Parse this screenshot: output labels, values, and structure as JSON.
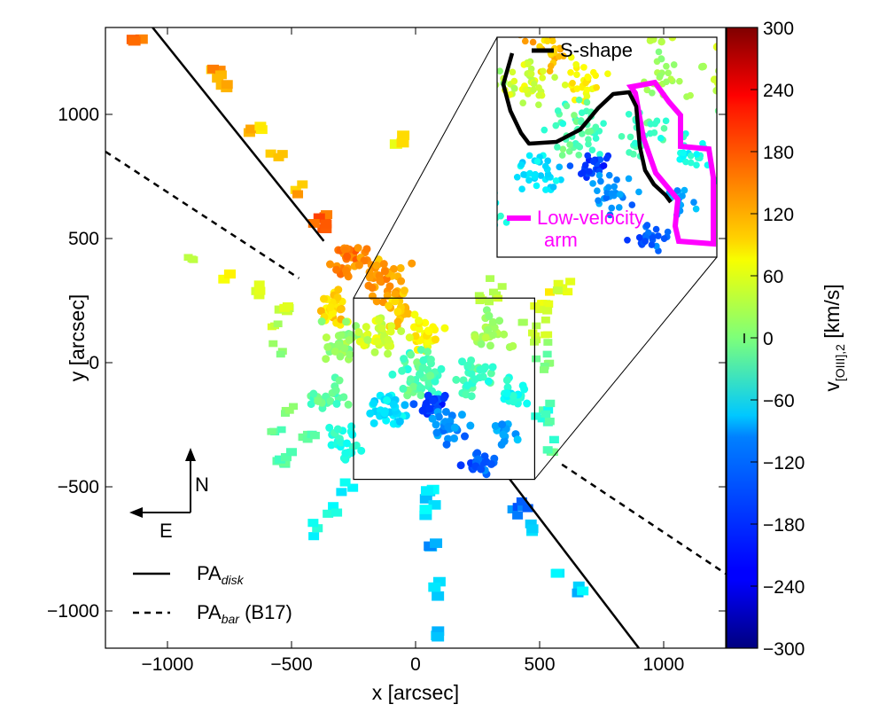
{
  "chart_data": {
    "type": "scatter",
    "xlabel": "x [arcsec]",
    "ylabel": "y [arcsec]",
    "xlim": [
      -1250,
      1250
    ],
    "ylim": [
      -1150,
      1350
    ],
    "xticks": [
      -1000,
      -500,
      0,
      500,
      1000
    ],
    "xtick_labels": [
      "−1000",
      "−500",
      "0",
      "500",
      "1000"
    ],
    "yticks": [
      -1000,
      -500,
      0,
      500,
      1000
    ],
    "ytick_labels": [
      "−1000",
      "−500",
      "0",
      "500",
      "1000"
    ],
    "colorbar": {
      "label_main": "v",
      "label_sub": "[OIII],2",
      "label_unit": " [km/s]",
      "range": [
        -300,
        300
      ],
      "ticks": [
        300,
        240,
        180,
        120,
        60,
        0,
        -60,
        -120,
        -180,
        -240,
        -300
      ],
      "tick_labels": [
        "300",
        "240",
        "180",
        "120",
        "60",
        "0",
        "−60",
        "−120",
        "−180",
        "−240",
        "−300"
      ],
      "colormap": "jet",
      "errorbar_symbol": "I"
    },
    "lines": [
      {
        "name": "PA_disk",
        "style": "solid",
        "color": "#000000",
        "segments": [
          [
            [
              -1060,
              1350
            ],
            [
              -370,
              490
            ]
          ],
          [
            [
              380,
              -470
            ],
            [
              900,
              -1150
            ]
          ]
        ]
      },
      {
        "name": "PA_bar (B17)",
        "style": "dashed",
        "color": "#000000",
        "segments": [
          [
            [
              -1250,
              850
            ],
            [
              -470,
              340
            ]
          ],
          [
            [
              590,
              -410
            ],
            [
              1250,
              -850
            ]
          ]
        ]
      }
    ],
    "legend": {
      "position": "lower-left",
      "entries": [
        {
          "base": "PA",
          "sub": "disk",
          "suffix": "",
          "style": "solid"
        },
        {
          "base": "PA",
          "sub": "bar",
          "suffix": " (B17)",
          "style": "dashed"
        }
      ]
    },
    "compass": {
      "north": "N",
      "east": "E"
    },
    "zoom_box": {
      "x": [
        -250,
        480
      ],
      "y": [
        -470,
        260
      ]
    },
    "inset": {
      "legend_s_shape": "S-shape",
      "legend_low_velocity_line1": "Low-velocity",
      "legend_low_velocity_line2": "arm",
      "s_shape_color": "#000000",
      "low_velocity_color": "#ff00ff"
    },
    "clusters": [
      {
        "x": -1120,
        "y": 1300,
        "v": 155,
        "n": 3,
        "s": 25,
        "size": 14,
        "shape": "rect"
      },
      {
        "x": -830,
        "y": 1190,
        "v": 130,
        "n": 4,
        "s": 35,
        "size": 13,
        "shape": "rect"
      },
      {
        "x": -770,
        "y": 1110,
        "v": 125,
        "n": 4,
        "s": 35,
        "size": 13,
        "shape": "rect"
      },
      {
        "x": -640,
        "y": 940,
        "v": 110,
        "n": 4,
        "s": 30,
        "size": 13,
        "shape": "rect"
      },
      {
        "x": -560,
        "y": 820,
        "v": 100,
        "n": 3,
        "s": 25,
        "size": 12,
        "shape": "rect"
      },
      {
        "x": -470,
        "y": 690,
        "v": 115,
        "n": 3,
        "s": 25,
        "size": 12,
        "shape": "rect"
      },
      {
        "x": -380,
        "y": 570,
        "v": 170,
        "n": 8,
        "s": 40,
        "size": 13,
        "shape": "rect"
      },
      {
        "x": -70,
        "y": 910,
        "v": 95,
        "n": 3,
        "s": 25,
        "size": 14,
        "shape": "rect"
      },
      {
        "x": -900,
        "y": 420,
        "v": 40,
        "n": 3,
        "s": 25,
        "size": 10,
        "shape": "rect"
      },
      {
        "x": -760,
        "y": 360,
        "v": 75,
        "n": 3,
        "s": 25,
        "size": 13,
        "shape": "rect"
      },
      {
        "x": -640,
        "y": 300,
        "v": 50,
        "n": 4,
        "s": 30,
        "size": 12,
        "shape": "rect"
      },
      {
        "x": -520,
        "y": 230,
        "v": 40,
        "n": 5,
        "s": 35,
        "size": 12,
        "shape": "rect"
      },
      {
        "x": -550,
        "y": 60,
        "v": 10,
        "n": 3,
        "s": 25,
        "size": 10,
        "shape": "rect"
      },
      {
        "x": -580,
        "y": -280,
        "v": -10,
        "n": 4,
        "s": 30,
        "size": 10,
        "shape": "rect"
      },
      {
        "x": -530,
        "y": -390,
        "v": -30,
        "n": 6,
        "s": 40,
        "size": 12,
        "shape": "rect"
      },
      {
        "x": -500,
        "y": -180,
        "v": 5,
        "n": 4,
        "s": 30,
        "size": 10,
        "shape": "rect"
      },
      {
        "x": -430,
        "y": -300,
        "v": -20,
        "n": 5,
        "s": 35,
        "size": 11,
        "shape": "rect"
      },
      {
        "x": -270,
        "y": 420,
        "v": 150,
        "n": 35,
        "s": 65,
        "size": 9,
        "shape": "circle"
      },
      {
        "x": -130,
        "y": 340,
        "v": 130,
        "n": 40,
        "s": 75,
        "size": 9,
        "shape": "circle"
      },
      {
        "x": -330,
        "y": 230,
        "v": 90,
        "n": 30,
        "s": 60,
        "size": 9,
        "shape": "circle"
      },
      {
        "x": -310,
        "y": 80,
        "v": 15,
        "n": 35,
        "s": 70,
        "size": 9,
        "shape": "circle"
      },
      {
        "x": -350,
        "y": -120,
        "v": -25,
        "n": 25,
        "s": 70,
        "size": 9,
        "shape": "circle"
      },
      {
        "x": -280,
        "y": -330,
        "v": -55,
        "n": 25,
        "s": 70,
        "size": 9,
        "shape": "circle"
      },
      {
        "x": -70,
        "y": 230,
        "v": 110,
        "n": 20,
        "s": 60,
        "size": 9,
        "shape": "circle"
      },
      {
        "x": -150,
        "y": 100,
        "v": 50,
        "n": 40,
        "s": 70,
        "size": 9,
        "shape": "circle"
      },
      {
        "x": 40,
        "y": 120,
        "v": 80,
        "n": 30,
        "s": 60,
        "size": 9,
        "shape": "circle"
      },
      {
        "x": 20,
        "y": -40,
        "v": -30,
        "n": 50,
        "s": 75,
        "size": 9,
        "shape": "circle"
      },
      {
        "x": 60,
        "y": -170,
        "v": -190,
        "n": 25,
        "s": 45,
        "size": 9,
        "shape": "circle"
      },
      {
        "x": 130,
        "y": -250,
        "v": -140,
        "n": 30,
        "s": 60,
        "size": 9,
        "shape": "circle"
      },
      {
        "x": -100,
        "y": -190,
        "v": -90,
        "n": 35,
        "s": 70,
        "size": 9,
        "shape": "circle"
      },
      {
        "x": 230,
        "y": -60,
        "v": -40,
        "n": 30,
        "s": 70,
        "size": 9,
        "shape": "circle"
      },
      {
        "x": 300,
        "y": 120,
        "v": 20,
        "n": 25,
        "s": 70,
        "size": 9,
        "shape": "circle"
      },
      {
        "x": 250,
        "y": -400,
        "v": -170,
        "n": 25,
        "s": 50,
        "size": 9,
        "shape": "circle"
      },
      {
        "x": 350,
        "y": -280,
        "v": -130,
        "n": 15,
        "s": 50,
        "size": 9,
        "shape": "circle"
      },
      {
        "x": 400,
        "y": -130,
        "v": -60,
        "n": 20,
        "s": 50,
        "size": 9,
        "shape": "circle"
      },
      {
        "x": 480,
        "y": 120,
        "v": 40,
        "n": 12,
        "s": 45,
        "size": 10,
        "shape": "rect"
      },
      {
        "x": 530,
        "y": 240,
        "v": 60,
        "n": 8,
        "s": 40,
        "size": 11,
        "shape": "rect"
      },
      {
        "x": 600,
        "y": 300,
        "v": 50,
        "n": 6,
        "s": 35,
        "size": 11,
        "shape": "rect"
      },
      {
        "x": 300,
        "y": 290,
        "v": 30,
        "n": 10,
        "s": 45,
        "size": 10,
        "shape": "rect"
      },
      {
        "x": 520,
        "y": -210,
        "v": -40,
        "n": 8,
        "s": 40,
        "size": 11,
        "shape": "rect"
      },
      {
        "x": 560,
        "y": -350,
        "v": -30,
        "n": 4,
        "s": 30,
        "size": 11,
        "shape": "rect"
      },
      {
        "x": 420,
        "y": -600,
        "v": -150,
        "n": 3,
        "s": 25,
        "size": 12,
        "shape": "rect"
      },
      {
        "x": 480,
        "y": -680,
        "v": -110,
        "n": 3,
        "s": 25,
        "size": 13,
        "shape": "rect"
      },
      {
        "x": 560,
        "y": -830,
        "v": -100,
        "n": 3,
        "s": 25,
        "size": 13,
        "shape": "rect"
      },
      {
        "x": 660,
        "y": -930,
        "v": -100,
        "n": 3,
        "s": 25,
        "size": 13,
        "shape": "rect"
      },
      {
        "x": 430,
        "y": -560,
        "v": -160,
        "n": 3,
        "s": 25,
        "size": 12,
        "shape": "rect"
      },
      {
        "x": -280,
        "y": -500,
        "v": -80,
        "n": 3,
        "s": 25,
        "size": 12,
        "shape": "rect"
      },
      {
        "x": -330,
        "y": -600,
        "v": -70,
        "n": 3,
        "s": 25,
        "size": 12,
        "shape": "rect"
      },
      {
        "x": -400,
        "y": -670,
        "v": -70,
        "n": 3,
        "s": 25,
        "size": 12,
        "shape": "rect"
      },
      {
        "x": 60,
        "y": -520,
        "v": -100,
        "n": 4,
        "s": 30,
        "size": 14,
        "shape": "rect"
      },
      {
        "x": 60,
        "y": -600,
        "v": -100,
        "n": 3,
        "s": 25,
        "size": 14,
        "shape": "rect"
      },
      {
        "x": 70,
        "y": -740,
        "v": -135,
        "n": 3,
        "s": 25,
        "size": 14,
        "shape": "rect"
      },
      {
        "x": 80,
        "y": -910,
        "v": -110,
        "n": 3,
        "s": 25,
        "size": 14,
        "shape": "rect"
      },
      {
        "x": 90,
        "y": -1090,
        "v": -110,
        "n": 3,
        "s": 25,
        "size": 14,
        "shape": "rect"
      },
      {
        "x": -570,
        "y": 150,
        "v": 30,
        "n": 3,
        "s": 25,
        "size": 10,
        "shape": "rect"
      },
      {
        "x": 520,
        "y": 0,
        "v": -5,
        "n": 6,
        "s": 35,
        "size": 10,
        "shape": "rect"
      }
    ]
  }
}
